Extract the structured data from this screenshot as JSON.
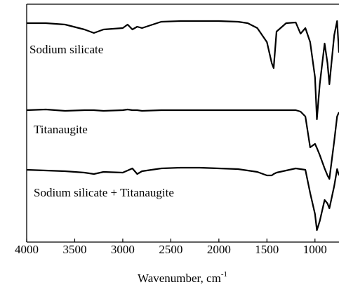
{
  "chart_data": {
    "type": "line",
    "x_label": {
      "text": "Wavenumber, cm",
      "superscript": "-1"
    },
    "xlim": [
      4000,
      750
    ],
    "xticks": [
      4000,
      3500,
      3000,
      2500,
      2000,
      1500,
      1000
    ],
    "ylim": [
      0,
      339
    ],
    "x": [
      4000,
      3800,
      3600,
      3400,
      3300,
      3200,
      3000,
      2950,
      2900,
      2850,
      2800,
      2600,
      2400,
      2200,
      2000,
      1800,
      1700,
      1600,
      1500,
      1450,
      1430,
      1400,
      1300,
      1200,
      1150,
      1100,
      1050,
      1000,
      980,
      950,
      900,
      870,
      850,
      800,
      770,
      750
    ],
    "series": [
      {
        "name": "Sodium silicate",
        "color": "#000000",
        "values": [
          312,
          312,
          310,
          303,
          298,
          303,
          305,
          310,
          303,
          307,
          305,
          314,
          315,
          315,
          315,
          314,
          312,
          305,
          285,
          255,
          248,
          300,
          312,
          313,
          297,
          305,
          285,
          235,
          175,
          225,
          283,
          255,
          225,
          295,
          315,
          270
        ]
      },
      {
        "name": "Titanaugite",
        "color": "#000000",
        "values": [
          188,
          189,
          187,
          188,
          188,
          187,
          188,
          189,
          188,
          188,
          187,
          188,
          188,
          188,
          188,
          188,
          188,
          188,
          188,
          188,
          188,
          188,
          188,
          188,
          186,
          179,
          135,
          140,
          134,
          124,
          105,
          95,
          90,
          144,
          179,
          185
        ]
      },
      {
        "name": "Sodium silicate + Titanaugite",
        "color": "#000000",
        "values": [
          103,
          102,
          101,
          99,
          97,
          100,
          99,
          102,
          105,
          97,
          101,
          105,
          106,
          106,
          105,
          104,
          102,
          100,
          95,
          95,
          97,
          99,
          102,
          105,
          104,
          103,
          70,
          40,
          17,
          30,
          60,
          55,
          48,
          80,
          104,
          95
        ]
      }
    ]
  }
}
